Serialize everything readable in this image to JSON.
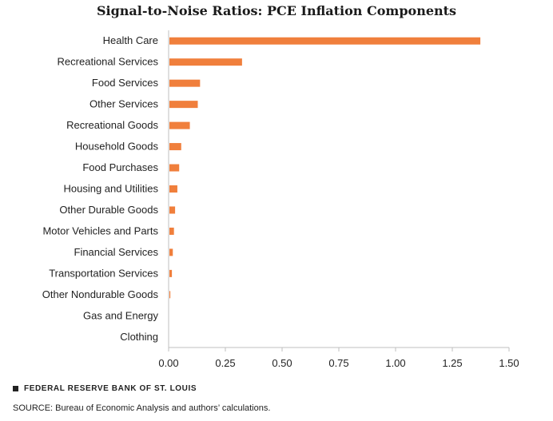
{
  "title": "Signal-to-Noise Ratios: PCE Inflation Components",
  "chart_data": {
    "type": "bar",
    "orientation": "horizontal",
    "title": "Signal-to-Noise Ratios: PCE Inflation Components",
    "categories": [
      "Health Care",
      "Recreational Services",
      "Food Services",
      "Other Services",
      "Recreational Goods",
      "Household Goods",
      "Food Purchases",
      "Housing and Utilities",
      "Other Durable Goods",
      "Motor Vehicles and Parts",
      "Financial Services",
      "Transportation Services",
      "Other Nondurable Goods",
      "Gas and Energy",
      "Clothing"
    ],
    "values": [
      1.37,
      0.32,
      0.135,
      0.125,
      0.09,
      0.052,
      0.043,
      0.035,
      0.025,
      0.02,
      0.015,
      0.011,
      0.004,
      0.0,
      0.0
    ],
    "xlim": [
      0,
      1.5
    ],
    "xticks": [
      "0.00",
      "0.25",
      "0.50",
      "0.75",
      "1.00",
      "1.25",
      "1.50"
    ],
    "xtick_values": [
      0,
      0.25,
      0.5,
      0.75,
      1.0,
      1.25,
      1.5
    ],
    "bar_color": "#f07f3c",
    "axis_color": "#bfbfbf",
    "grid": false,
    "legend": "none"
  },
  "footer": {
    "brand": "FEDERAL RESERVE BANK OF ST. LOUIS",
    "source": "SOURCE: Bureau of Economic Analysis and authors’ calculations."
  }
}
